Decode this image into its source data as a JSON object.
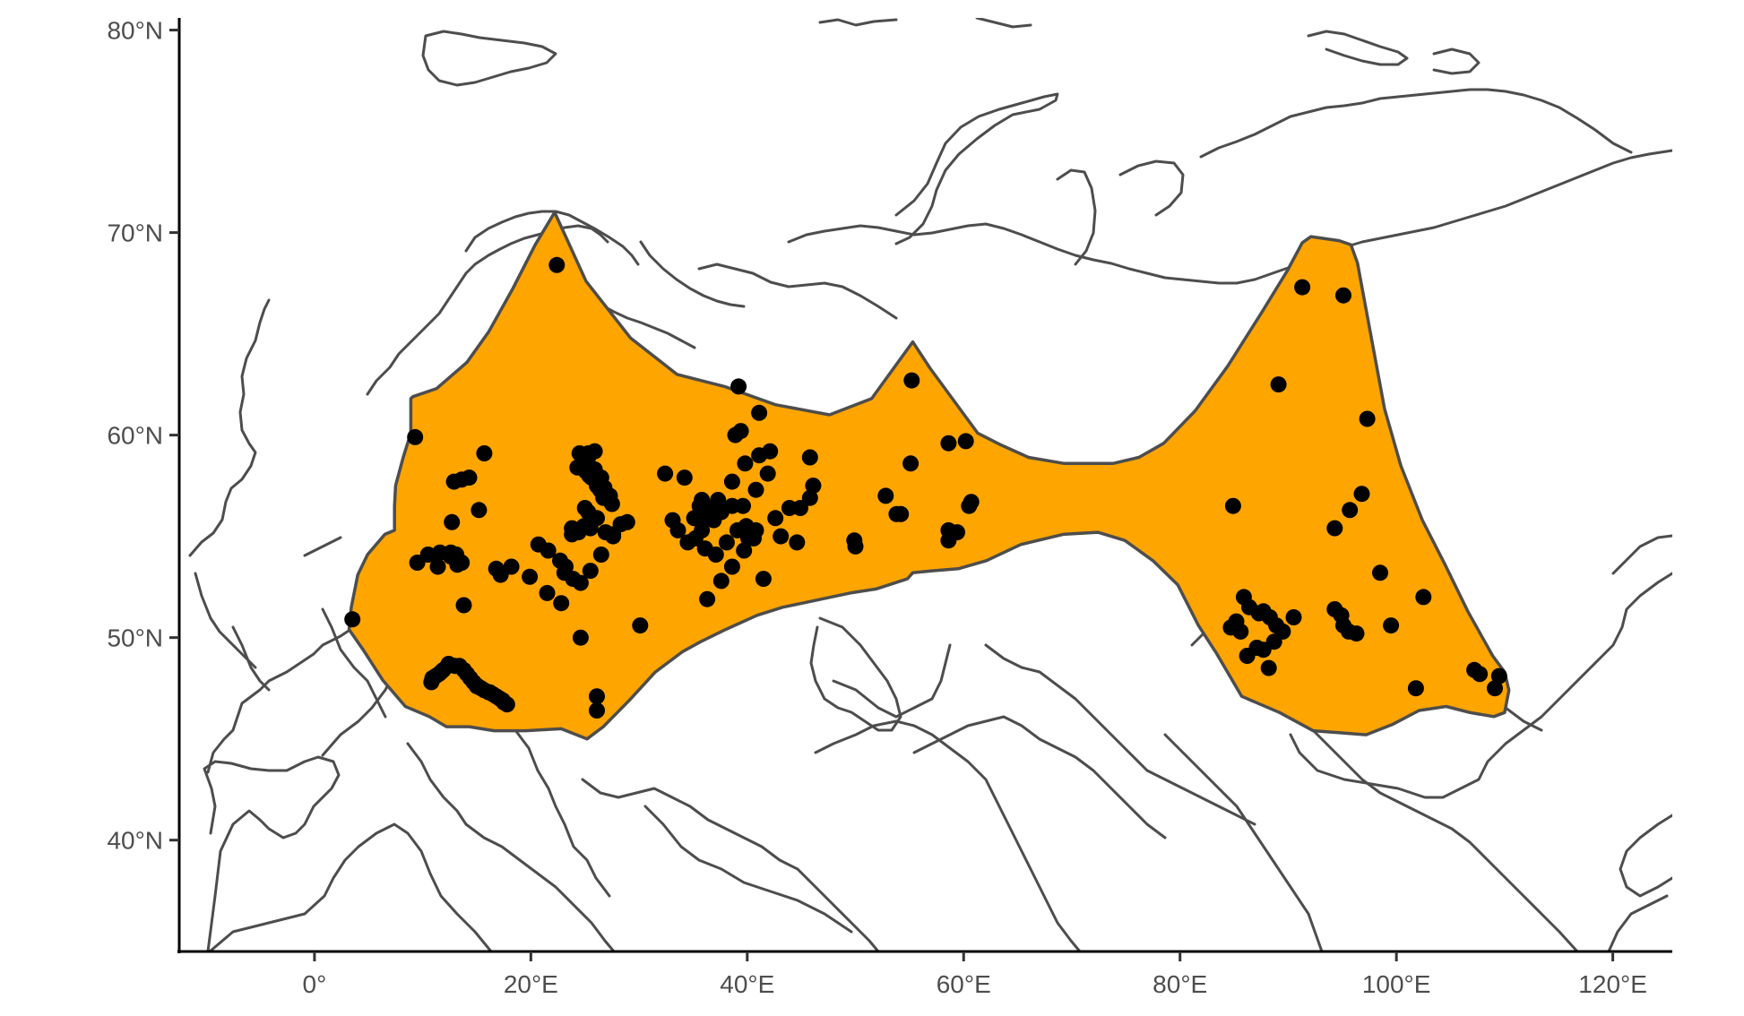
{
  "colors": {
    "range_fill": "#FFA500",
    "outline": "#4d4d4d",
    "points": "#000000",
    "axis": "#000000"
  },
  "chart_data": {
    "type": "scatter",
    "title": "",
    "xlabel": "",
    "ylabel": "",
    "xlim": [
      -12.5,
      125.5
    ],
    "ylim": [
      34.5,
      80.6
    ],
    "grid": false,
    "x_ticks": [
      {
        "value": 0,
        "label": "0°"
      },
      {
        "value": 20,
        "label": "20°E"
      },
      {
        "value": 40,
        "label": "40°E"
      },
      {
        "value": 60,
        "label": "60°E"
      },
      {
        "value": 80,
        "label": "80°E"
      },
      {
        "value": 100,
        "label": "100°E"
      },
      {
        "value": 120,
        "label": "120°E"
      }
    ],
    "y_ticks": [
      {
        "value": 40,
        "label": "40°N"
      },
      {
        "value": 50,
        "label": "50°N"
      },
      {
        "value": 60,
        "label": "60°N"
      },
      {
        "value": 70,
        "label": "70°N"
      },
      {
        "value": 80,
        "label": "80°N"
      }
    ],
    "range_polygon": [
      [
        22.2,
        71
      ],
      [
        25.1,
        67.6
      ],
      [
        29.2,
        64.8
      ],
      [
        33.5,
        63
      ],
      [
        37.9,
        62.4
      ],
      [
        42.6,
        61.5
      ],
      [
        47.6,
        61
      ],
      [
        51.5,
        61.8
      ],
      [
        55.3,
        64.6
      ],
      [
        56.9,
        63.3
      ],
      [
        61.3,
        60.1
      ],
      [
        63.5,
        59.5
      ],
      [
        66,
        58.9
      ],
      [
        69.3,
        58.6
      ],
      [
        73.8,
        58.6
      ],
      [
        76.2,
        58.9
      ],
      [
        78.5,
        59.6
      ],
      [
        81.4,
        61.2
      ],
      [
        84.4,
        63.4
      ],
      [
        87.6,
        66.1
      ],
      [
        89.9,
        68.1
      ],
      [
        91.3,
        69.5
      ],
      [
        92.1,
        69.8
      ],
      [
        94.7,
        69.6
      ],
      [
        95.8,
        69.4
      ],
      [
        96.4,
        68.5
      ],
      [
        97.3,
        65.9
      ],
      [
        98.9,
        61.3
      ],
      [
        100.4,
        58.5
      ],
      [
        102.4,
        55.8
      ],
      [
        104.5,
        53.6
      ],
      [
        106.6,
        51.3
      ],
      [
        108.9,
        49.1
      ],
      [
        110,
        48.3
      ],
      [
        110.4,
        47.4
      ],
      [
        110,
        46.3
      ],
      [
        109,
        46.1
      ],
      [
        106.8,
        46.3
      ],
      [
        104.6,
        46.6
      ],
      [
        102.1,
        46.4
      ],
      [
        99.6,
        45.7
      ],
      [
        97.2,
        45.2
      ],
      [
        94.8,
        45.3
      ],
      [
        92.3,
        45.4
      ],
      [
        89.2,
        46.3
      ],
      [
        85.7,
        47.1
      ],
      [
        83.4,
        49.2
      ],
      [
        81.7,
        50.6
      ],
      [
        79.8,
        52.6
      ],
      [
        77.5,
        53.8
      ],
      [
        74.9,
        54.8
      ],
      [
        72.4,
        55.2
      ],
      [
        69.2,
        55.1
      ],
      [
        65.3,
        54.6
      ],
      [
        62.1,
        53.8
      ],
      [
        59.5,
        53.4
      ],
      [
        57.1,
        53.3
      ],
      [
        55.3,
        53.2
      ],
      [
        54.8,
        52.9
      ],
      [
        51.9,
        52.4
      ],
      [
        49.5,
        52.2
      ],
      [
        45.1,
        51.7
      ],
      [
        43.3,
        51.5
      ],
      [
        40.9,
        51.1
      ],
      [
        38,
        50.4
      ],
      [
        35.7,
        49.8
      ],
      [
        34,
        49.3
      ],
      [
        31.5,
        48.3
      ],
      [
        29.1,
        46.9
      ],
      [
        26.7,
        45.6
      ],
      [
        25.2,
        45
      ],
      [
        22.8,
        45.5
      ],
      [
        19.5,
        45.4
      ],
      [
        16.6,
        45.4
      ],
      [
        14.3,
        45.6
      ],
      [
        12.2,
        45.6
      ],
      [
        10.6,
        46.1
      ],
      [
        8.4,
        46.6
      ],
      [
        6.3,
        47.9
      ],
      [
        4.5,
        49.4
      ],
      [
        3.2,
        50.4
      ],
      [
        3.4,
        51.5
      ],
      [
        4,
        53.1
      ],
      [
        4.9,
        54.1
      ],
      [
        6.5,
        55.1
      ],
      [
        7.4,
        55.3
      ],
      [
        7.4,
        56.5
      ],
      [
        7.5,
        57.5
      ],
      [
        8.2,
        58.9
      ],
      [
        8.9,
        60.1
      ],
      [
        8.9,
        61.8
      ],
      [
        9.1,
        61.9
      ],
      [
        11.3,
        62.3
      ],
      [
        14.1,
        63.6
      ],
      [
        16.1,
        65.1
      ],
      [
        18.3,
        67.2
      ],
      [
        20.4,
        69.4
      ]
    ],
    "series": [
      {
        "type": "scatter",
        "x": [
          22.4,
          9.3,
          55.2,
          39.2,
          41.1,
          38.9,
          39.4,
          60.2,
          58.6,
          55.1,
          45.8,
          15.7,
          13.6,
          14.3,
          12.9,
          12.7,
          15.2,
          10.5,
          11.6,
          12.6,
          12.6,
          13.1,
          13.2,
          13.6,
          13.6,
          11.4,
          9.5,
          13.8,
          3.5,
          16.8,
          17.2,
          18.2,
          19.9,
          20.7,
          21.6,
          22.7,
          23.2,
          23.9,
          24.6,
          25.5,
          26.5,
          27.6,
          28.9,
          26.1,
          26.9,
          25.5,
          24.9,
          24.3,
          23.8,
          23.8,
          24.4,
          23.1,
          22.8,
          21.5,
          24.6,
          30.1,
          26.1,
          26.1,
          32.4,
          34.2,
          35.6,
          35.8,
          36.3,
          33.1,
          33.6,
          34.5,
          35.8,
          36.4,
          37.3,
          38.6,
          39.8,
          41.1,
          42.1,
          41.9,
          40.8,
          39.6,
          38.6,
          37.6,
          36.9,
          35.9,
          35.1,
          35.2,
          36.1,
          37.1,
          38.1,
          39.1,
          39.9,
          40.1,
          40.8,
          40.6,
          39.7,
          38.6,
          37.6,
          36.3,
          42.6,
          43.9,
          44.9,
          45.8,
          46.1,
          44.6,
          43.1,
          41.5,
          52.8,
          53.8,
          54.2,
          49.9,
          50.0,
          58.6,
          58.6,
          59.4,
          60.5,
          60.7,
          91.3,
          95.1,
          89.1,
          97.3,
          84.9,
          96.8,
          95.7,
          94.3,
          85.9,
          86.4,
          87.3,
          87.7,
          88.3,
          88.9,
          89.5,
          88.7,
          87.7,
          87.1,
          86.2,
          85.6,
          84.7,
          85.2,
          88.2,
          90.5,
          94.3,
          94.9,
          95.1,
          95.6,
          96.3,
          98.5,
          99.5,
          102.5,
          101.8,
          107.2,
          107.7,
          109.1,
          109.5,
          25.3,
          25.9,
          24.5,
          25.3,
          24.3,
          24.7,
          24.9,
          25.1,
          25.6,
          25.9,
          25.4,
          26.1,
          26.5,
          26.8,
          26.4,
          26.7,
          27.3,
          27.5,
          25.3,
          25.0,
          25.9,
          27.6,
          28.3
        ],
        "y": [
          68.4,
          59.9,
          62.7,
          62.4,
          61.1,
          60.0,
          60.2,
          59.7,
          59.6,
          58.6,
          58.9,
          59.1,
          57.8,
          57.9,
          57.7,
          55.7,
          56.3,
          54.1,
          54.2,
          54.0,
          54.2,
          54.1,
          53.6,
          53.7,
          53.7,
          53.5,
          53.7,
          51.6,
          50.9,
          53.4,
          53.1,
          53.5,
          53.0,
          54.6,
          54.3,
          53.8,
          53.5,
          52.9,
          52.7,
          53.3,
          54.1,
          55.0,
          55.7,
          55.9,
          55.2,
          55.4,
          55.5,
          55.2,
          55.4,
          55.1,
          55.2,
          53.2,
          51.7,
          52.2,
          50.0,
          50.6,
          47.1,
          46.4,
          58.1,
          57.9,
          56.5,
          56.8,
          56.4,
          55.8,
          55.3,
          54.7,
          55.3,
          56.2,
          56.8,
          57.7,
          58.6,
          59.0,
          59.2,
          58.1,
          57.3,
          56.5,
          56.5,
          56.2,
          55.8,
          55.8,
          55.9,
          54.9,
          54.4,
          54.1,
          54.7,
          55.3,
          55.5,
          54.9,
          55.3,
          54.9,
          54.3,
          53.5,
          52.8,
          51.9,
          55.9,
          56.4,
          56.4,
          56.9,
          57.5,
          54.7,
          55.0,
          52.9,
          57.0,
          56.1,
          56.1,
          54.8,
          54.5,
          54.8,
          55.3,
          55.2,
          56.5,
          56.7,
          67.3,
          66.9,
          62.5,
          60.8,
          56.5,
          57.1,
          56.3,
          55.4,
          52.0,
          51.5,
          51.2,
          51.3,
          51.0,
          50.6,
          50.3,
          49.8,
          49.4,
          49.5,
          49.1,
          50.3,
          50.5,
          50.8,
          48.5,
          51.0,
          51.4,
          51.1,
          50.6,
          50.3,
          50.2,
          53.2,
          50.6,
          52.0,
          47.5,
          48.4,
          48.2,
          47.5,
          48.1,
          59.1,
          59.2,
          59.1,
          58.9,
          58.4,
          58.6,
          58.7,
          58.2,
          57.9,
          58.3,
          58.0,
          57.5,
          57.9,
          57.4,
          57.3,
          56.9,
          57.0,
          56.6,
          56.2,
          56.4,
          55.9,
          55.1,
          55.6
        ]
      },
      {
        "type": "scatter",
        "x": [
          10.8,
          10.9,
          11.2,
          11.5,
          11.7,
          11.9,
          12.3,
          12.4,
          13.0,
          13.4,
          13.8,
          14.1,
          14.4,
          14.7,
          15.0,
          15.1,
          15.4,
          15.7,
          16.1,
          16.2,
          16.5,
          16.8,
          17.1,
          17.4,
          17.5,
          17.8
        ],
        "y": [
          47.8,
          48.0,
          48.1,
          48.2,
          48.3,
          48.4,
          48.6,
          48.7,
          48.6,
          48.6,
          48.4,
          48.2,
          48.0,
          47.8,
          47.6,
          47.6,
          47.5,
          47.4,
          47.3,
          47.3,
          47.2,
          47.1,
          47.0,
          46.9,
          46.8,
          46.7
        ]
      }
    ]
  }
}
